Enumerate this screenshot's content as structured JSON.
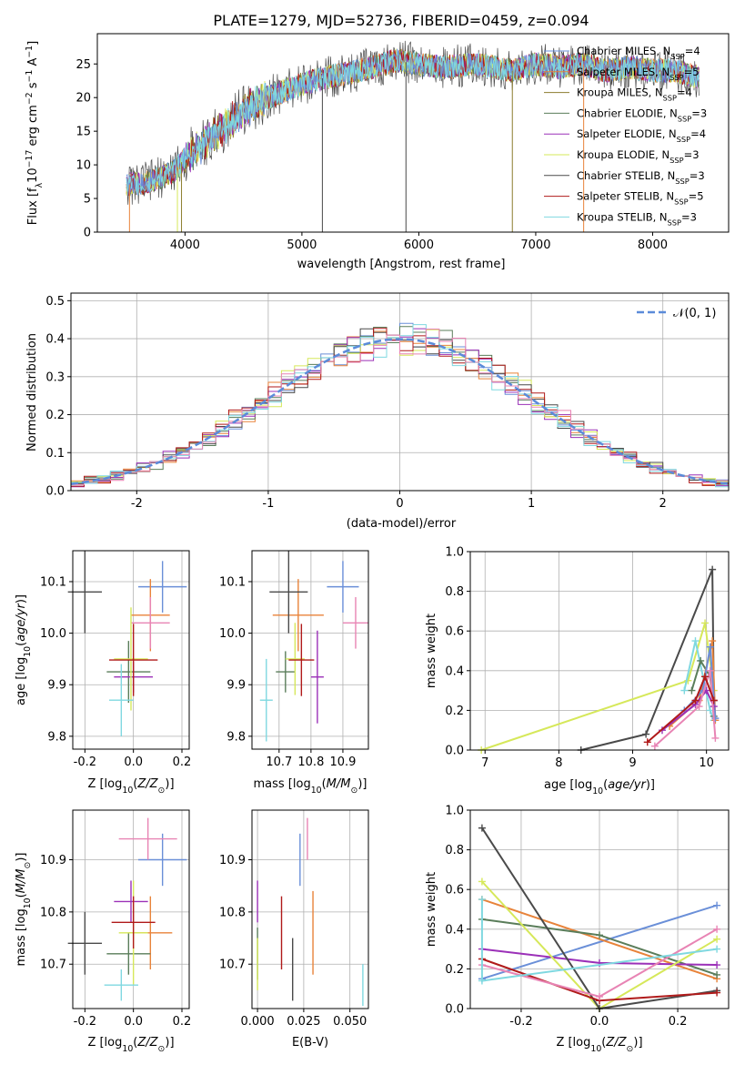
{
  "figure_title": "PLATE=1279, MJD=52736, FIBERID=0459, z=0.094",
  "models": [
    {
      "name": "Chabrier MILES",
      "nssp": "4",
      "color": "#6a8fd8"
    },
    {
      "name": "Salpeter MILES",
      "nssp": "5",
      "color": "#e8833a"
    },
    {
      "name": "Kroupa MILES",
      "nssp": "4",
      "color": "#8b7d2e"
    },
    {
      "name": "Chabrier ELODIE",
      "nssp": "3",
      "color": "#5a7d5a"
    },
    {
      "name": "Salpeter ELODIE",
      "nssp": "4",
      "color": "#9b30b8"
    },
    {
      "name": "Kroupa ELODIE",
      "nssp": "3",
      "color": "#d6e85a"
    },
    {
      "name": "Chabrier STELIB",
      "nssp": "3",
      "color": "#4a4a4a"
    },
    {
      "name": "Salpeter STELIB",
      "nssp": "5",
      "color": "#b01a1a"
    },
    {
      "name": "Kroupa STELIB",
      "nssp": "3",
      "color": "#7fd8e0"
    }
  ],
  "colors_extra": {
    "pink": "#e884b4",
    "gauss": "#5b8bd9",
    "grid": "#b0b0b0"
  },
  "chart_data": [
    {
      "type": "line",
      "title": "PLATE=1279, MJD=52736, FIBERID=0459, z=0.094",
      "xlabel": "wavelength [Angstrom, rest frame]",
      "ylabel": "Flux [f_λ 10^-17 erg cm^-2 s^-1 A^-1]",
      "xlim": [
        3250,
        8650
      ],
      "ylim": [
        0,
        29.5
      ],
      "xticks": [
        4000,
        5000,
        6000,
        7000,
        8000
      ],
      "yticks": [
        0,
        5,
        10,
        15,
        20,
        25
      ],
      "envelope": {
        "x": [
          3500,
          3700,
          3900,
          4000,
          4100,
          4300,
          4500,
          4700,
          5000,
          5200,
          5500,
          5800,
          6000,
          6200,
          6500,
          6800,
          7000,
          7200,
          7400,
          7600,
          7800,
          8000,
          8200,
          8400
        ],
        "y": [
          7,
          7.5,
          9,
          11,
          12.5,
          15,
          18,
          20,
          22,
          23,
          24,
          25.5,
          25,
          24.5,
          25,
          24,
          25,
          24.5,
          25,
          24,
          24.5,
          24,
          24,
          23
        ]
      },
      "dips": [
        3525,
        3935,
        3970,
        5175,
        5890,
        6800,
        7410
      ],
      "legend_position": "right"
    },
    {
      "type": "histogram",
      "xlabel": "(data-model)/error",
      "ylabel": "Normed distribution",
      "xlim": [
        -2.5,
        2.5
      ],
      "ylim": [
        0,
        0.52
      ],
      "xticks": [
        -2,
        -1,
        0,
        1,
        2
      ],
      "yticks": [
        0.0,
        0.1,
        0.2,
        0.3,
        0.4,
        0.5
      ],
      "legend": "𝒩(0, 1)",
      "legend_position": "top-right",
      "bin_width": 0.1,
      "bin_range": [
        -2.5,
        2.5
      ]
    },
    {
      "type": "scatter",
      "xlabel": "Z [log10(Z/Z⊙)]",
      "ylabel": "age  [log10(age/yr)]",
      "xlim": [
        -0.25,
        0.23
      ],
      "ylim": [
        9.775,
        10.16
      ],
      "xticks": [
        -0.2,
        0.0,
        0.2
      ],
      "yticks": [
        9.8,
        9.9,
        10.0,
        10.1
      ],
      "points": [
        {
          "x": 0.12,
          "y": 10.09,
          "xerr": 0.1,
          "yerr": 0.05
        },
        {
          "x": 0.07,
          "y": 10.035,
          "xerr": 0.08,
          "yerr": 0.07
        },
        {
          "x": 0.07,
          "y": 10.02,
          "xerr": 0.08,
          "yerr": 0.05
        },
        {
          "x": -0.02,
          "y": 9.925,
          "xerr": 0.09,
          "yerr": 0.06
        },
        {
          "x": 0.0,
          "y": 9.915,
          "xerr": 0.08,
          "yerr": 0.03
        },
        {
          "x": -0.01,
          "y": 9.95,
          "xerr": 0.07,
          "yerr": 0.1
        },
        {
          "x": -0.2,
          "y": 10.08,
          "xerr": 0.07,
          "yerr": 0.08
        },
        {
          "x": 0.0,
          "y": 9.948,
          "xerr": 0.1,
          "yerr": 0.07
        },
        {
          "x": -0.05,
          "y": 9.87,
          "xerr": 0.05,
          "yerr": 0.07
        }
      ]
    },
    {
      "type": "scatter",
      "xlabel": "mass [log10(M/M⊙)]",
      "ylabel": "",
      "xlim": [
        10.615,
        10.98
      ],
      "ylim": [
        9.775,
        10.16
      ],
      "xticks": [
        10.7,
        10.8,
        10.9
      ],
      "yticks": [
        9.8,
        9.9,
        10.0,
        10.1
      ],
      "points": [
        {
          "x": 10.9,
          "y": 10.09,
          "xerr": 0.05,
          "yerr": 0.05
        },
        {
          "x": 10.76,
          "y": 10.035,
          "xerr": 0.08,
          "yerr": 0.07
        },
        {
          "x": 10.94,
          "y": 10.02,
          "xerr": 0.04,
          "yerr": 0.05
        },
        {
          "x": 10.72,
          "y": 9.925,
          "xerr": 0.03,
          "yerr": 0.04
        },
        {
          "x": 10.82,
          "y": 9.915,
          "xerr": 0.02,
          "yerr": 0.09
        },
        {
          "x": 10.75,
          "y": 9.95,
          "xerr": 0.03,
          "yerr": 0.07
        },
        {
          "x": 10.73,
          "y": 10.08,
          "xerr": 0.06,
          "yerr": 0.08
        },
        {
          "x": 10.77,
          "y": 9.948,
          "xerr": 0.04,
          "yerr": 0.07
        },
        {
          "x": 10.66,
          "y": 9.87,
          "xerr": 0.02,
          "yerr": 0.08
        }
      ]
    },
    {
      "type": "line",
      "xlabel": "age  [log10(age/yr)]",
      "ylabel": "mass weight",
      "xlim": [
        6.8,
        10.3
      ],
      "ylim": [
        0,
        1.0
      ],
      "xticks": [
        7,
        8,
        9,
        10
      ],
      "yticks": [
        0.0,
        0.2,
        0.4,
        0.6,
        0.8,
        1.0
      ]
    },
    {
      "type": "scatter",
      "xlabel": "Z [log10(Z/Z⊙)]",
      "ylabel": "mass [log10(M/M⊙)]",
      "xlim": [
        -0.25,
        0.23
      ],
      "ylim": [
        10.615,
        10.995
      ],
      "xticks": [
        -0.2,
        0.0,
        0.2
      ],
      "yticks": [
        10.7,
        10.8,
        10.9
      ]
    },
    {
      "type": "scatter",
      "xlabel": "E(B-V)",
      "ylabel": "",
      "xlim": [
        -0.003,
        0.06
      ],
      "ylim": [
        10.615,
        10.995
      ],
      "xticks": [
        0.0,
        0.025,
        0.05
      ],
      "xticklabels": [
        "0.000",
        "0.025",
        "0.050"
      ],
      "yticks": [
        10.7,
        10.8,
        10.9
      ]
    },
    {
      "type": "line",
      "xlabel": "Z [log10(Z/Z⊙)]",
      "ylabel": "mass weight",
      "xlim": [
        -0.33,
        0.33
      ],
      "ylim": [
        0,
        1.0
      ],
      "xticks": [
        -0.2,
        0.0,
        0.2
      ],
      "yticks": [
        0.0,
        0.2,
        0.4,
        0.6,
        0.8,
        1.0
      ],
      "series": [
        {
          "color": "#6a8fd8",
          "values": [
            [
              -0.3,
              0.15
            ],
            [
              0.3,
              0.52
            ]
          ]
        },
        {
          "color": "#e8833a",
          "values": [
            [
              -0.3,
              0.55
            ],
            [
              0.3,
              0.15
            ]
          ]
        },
        {
          "color": "#5a7d5a",
          "values": [
            [
              -0.3,
              0.45
            ],
            [
              0.0,
              0.37
            ],
            [
              0.3,
              0.17
            ]
          ]
        },
        {
          "color": "#9b30b8",
          "values": [
            [
              -0.3,
              0.3
            ],
            [
              0.0,
              0.23
            ],
            [
              0.3,
              0.22
            ]
          ]
        },
        {
          "color": "#d6e85a",
          "values": [
            [
              -0.3,
              0.64
            ],
            [
              0.0,
              0.0
            ],
            [
              0.3,
              0.35
            ]
          ]
        },
        {
          "color": "#4a4a4a",
          "values": [
            [
              -0.3,
              0.91
            ],
            [
              0.0,
              0.0
            ],
            [
              0.3,
              0.09
            ]
          ]
        },
        {
          "color": "#b01a1a",
          "values": [
            [
              -0.3,
              0.25
            ],
            [
              0.0,
              0.04
            ],
            [
              0.3,
              0.08
            ]
          ]
        },
        {
          "color": "#e884b4",
          "values": [
            [
              -0.3,
              0.22
            ],
            [
              0.0,
              0.06
            ],
            [
              0.3,
              0.4
            ]
          ]
        },
        {
          "color": "#7fd8e0",
          "values": [
            [
              -0.3,
              0.55
            ],
            [
              -0.3,
              0.14
            ],
            [
              0.3,
              0.3
            ]
          ]
        }
      ]
    }
  ],
  "mass_ebv_points": [
    {
      "ebv": 0.023,
      "mass": 10.9,
      "err": 0.05
    },
    {
      "ebv": 0.03,
      "mass": 10.76,
      "err": 0.08
    },
    {
      "ebv": 0.027,
      "mass": 10.94,
      "err": 0.04
    },
    {
      "ebv": 0.0,
      "mass": 10.72,
      "err": 0.05
    },
    {
      "ebv": 0.0,
      "mass": 10.82,
      "err": 0.04
    },
    {
      "ebv": 0.0,
      "mass": 10.7,
      "err": 0.05
    },
    {
      "ebv": 0.019,
      "mass": 10.69,
      "err": 0.06
    },
    {
      "ebv": 0.013,
      "mass": 10.76,
      "err": 0.07
    },
    {
      "ebv": 0.057,
      "mass": 10.66,
      "err": 0.04
    }
  ],
  "mass_z_points": [
    {
      "z": 0.12,
      "mass": 10.9,
      "zerr": 0.1,
      "merr": 0.05
    },
    {
      "z": 0.07,
      "mass": 10.76,
      "zerr": 0.09,
      "merr": 0.07
    },
    {
      "z": 0.06,
      "mass": 10.94,
      "zerr": 0.12,
      "merr": 0.04
    },
    {
      "z": -0.02,
      "mass": 10.72,
      "zerr": 0.09,
      "merr": 0.04
    },
    {
      "z": -0.01,
      "mass": 10.82,
      "zerr": 0.07,
      "merr": 0.04
    },
    {
      "z": 0.0,
      "mass": 10.76,
      "zerr": 0.06,
      "merr": 0.1
    },
    {
      "z": -0.2,
      "mass": 10.74,
      "zerr": 0.07,
      "merr": 0.06
    },
    {
      "z": 0.0,
      "mass": 10.78,
      "zerr": 0.09,
      "merr": 0.05
    },
    {
      "z": -0.05,
      "mass": 10.66,
      "zerr": 0.07,
      "merr": 0.03
    }
  ],
  "age_weight_series": [
    {
      "color": "#4a4a4a",
      "values": [
        [
          8.3,
          0.0
        ],
        [
          9.18,
          0.08
        ],
        [
          10.08,
          0.91
        ],
        [
          10.1,
          0.25
        ]
      ]
    },
    {
      "color": "#d6e85a",
      "values": [
        [
          6.95,
          0.0
        ],
        [
          9.75,
          0.35
        ],
        [
          9.98,
          0.64
        ],
        [
          10.1,
          0.3
        ]
      ]
    },
    {
      "color": "#7fd8e0",
      "values": [
        [
          9.7,
          0.3
        ],
        [
          9.85,
          0.55
        ],
        [
          10.05,
          0.2
        ],
        [
          10.1,
          0.15
        ]
      ]
    },
    {
      "color": "#5a7d5a",
      "values": [
        [
          9.8,
          0.3
        ],
        [
          9.92,
          0.45
        ],
        [
          10.05,
          0.37
        ],
        [
          10.1,
          0.17
        ]
      ]
    },
    {
      "color": "#e8833a",
      "values": [
        [
          9.5,
          0.12
        ],
        [
          9.9,
          0.25
        ],
        [
          10.08,
          0.55
        ],
        [
          10.12,
          0.15
        ]
      ]
    },
    {
      "color": "#6a8fd8",
      "values": [
        [
          9.7,
          0.2
        ],
        [
          9.95,
          0.3
        ],
        [
          10.05,
          0.52
        ],
        [
          10.12,
          0.16
        ]
      ]
    },
    {
      "color": "#9b30b8",
      "values": [
        [
          9.4,
          0.1
        ],
        [
          9.85,
          0.23
        ],
        [
          10.0,
          0.3
        ],
        [
          10.1,
          0.22
        ]
      ]
    },
    {
      "color": "#e884b4",
      "values": [
        [
          9.3,
          0.02
        ],
        [
          9.9,
          0.22
        ],
        [
          10.05,
          0.4
        ],
        [
          10.12,
          0.06
        ]
      ]
    },
    {
      "color": "#b01a1a",
      "values": [
        [
          9.2,
          0.04
        ],
        [
          9.85,
          0.25
        ],
        [
          9.98,
          0.37
        ],
        [
          10.1,
          0.25
        ]
      ]
    }
  ]
}
